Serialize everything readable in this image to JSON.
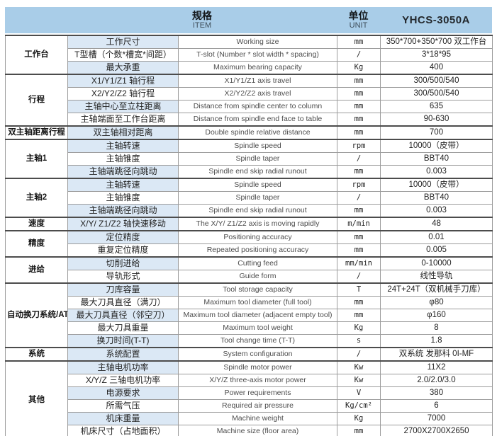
{
  "header": {
    "item_cn": "规格",
    "item_en": "ITEM",
    "unit_cn": "单位",
    "unit_en": "UNIT",
    "model": "YHCS-3050A"
  },
  "colors": {
    "header_bg": "#a9cde8",
    "row_tint": "#dbe8f5",
    "border_dark": "#4c4c4c",
    "border_light": "#9c9c9c"
  },
  "groups": [
    {
      "label": "工作台",
      "rows": [
        {
          "cn": "工作尺寸",
          "en": "Working size",
          "unit": "mm",
          "value": "350*700+350*700 双工作台"
        },
        {
          "cn": "T型槽（个数*槽宽*间距）",
          "en": "T-slot (Number * slot width * spacing)",
          "unit": "/",
          "value": "3*18*95"
        },
        {
          "cn": "最大承重",
          "en": "Maximum bearing capacity",
          "unit": "Kg",
          "value": "400"
        }
      ]
    },
    {
      "label": "行程",
      "rows": [
        {
          "cn": "X1/Y1/Z1 轴行程",
          "en": "X1/Y1/Z1 axis travel",
          "unit": "mm",
          "value": "300/500/540"
        },
        {
          "cn": "X2/Y2/Z2 轴行程",
          "en": "X2/Y2/Z2 axis travel",
          "unit": "mm",
          "value": "300/500/540"
        },
        {
          "cn": "主轴中心至立柱距离",
          "en": "Distance from spindle center to column",
          "unit": "mm",
          "value": "635"
        },
        {
          "cn": "主轴端面至工作台距离",
          "en": "Distance from spindle end face to table",
          "unit": "mm",
          "value": "90-630"
        }
      ]
    },
    {
      "label": "双主轴距离行程",
      "rows": [
        {
          "cn": "双主轴相对距离",
          "en": "Double spindle relative distance",
          "unit": "mm",
          "value": "700"
        }
      ]
    },
    {
      "label": "主轴1",
      "rows": [
        {
          "cn": "主轴转速",
          "en": "Spindle speed",
          "unit": "rpm",
          "value": "10000（皮带）"
        },
        {
          "cn": "主轴锥度",
          "en": "Spindle taper",
          "unit": "/",
          "value": "BBT40"
        },
        {
          "cn": "主轴端跳径向跳动",
          "en": "Spindle end skip radial runout",
          "unit": "mm",
          "value": "0.003"
        }
      ]
    },
    {
      "label": "主轴2",
      "rows": [
        {
          "cn": "主轴转速",
          "en": "Spindle speed",
          "unit": "rpm",
          "value": "10000（皮带）"
        },
        {
          "cn": "主轴锥度",
          "en": "Spindle taper",
          "unit": "/",
          "value": "BBT40"
        },
        {
          "cn": "主轴端跳径向跳动",
          "en": "Spindle end skip radial runout",
          "unit": "mm",
          "value": "0.003"
        }
      ]
    },
    {
      "label": "速度",
      "rows": [
        {
          "cn": "X/Y/ Z1/Z2 轴快速移动",
          "en": "The X/Y/ Z1/Z2 axis is moving rapidly",
          "unit": "m/min",
          "value": "48"
        }
      ]
    },
    {
      "label": "精度",
      "rows": [
        {
          "cn": "定位精度",
          "en": "Positioning accuracy",
          "unit": "mm",
          "value": "0.01"
        },
        {
          "cn": "重复定位精度",
          "en": "Repeated positioning accuracy",
          "unit": "mm",
          "value": "0.005"
        }
      ]
    },
    {
      "label": "进给",
      "rows": [
        {
          "cn": "切削进给",
          "en": "Cutting feed",
          "unit": "mm/min",
          "value": "0-10000"
        },
        {
          "cn": "导轨形式",
          "en": "Guide form",
          "unit": "/",
          "value": "线性导轨"
        }
      ]
    },
    {
      "label": "自动换刀系统/ATC",
      "rows": [
        {
          "cn": "刀库容量",
          "en": "Tool storage capacity",
          "unit": "T",
          "value": "24T+24T（双机械手刀库）"
        },
        {
          "cn": "最大刀具直径（满刀）",
          "en": "Maximum tool diameter (full tool)",
          "unit": "mm",
          "value": "φ80"
        },
        {
          "cn": "最大刀具直径（邻空刀）",
          "en": "Maximum tool diameter (adjacent empty tool)",
          "unit": "mm",
          "value": "φ160"
        },
        {
          "cn": "最大刀具重量",
          "en": "Maximum tool weight",
          "unit": "Kg",
          "value": "8"
        },
        {
          "cn": "换刀时间(T-T)",
          "en": "Tool change time (T-T)",
          "unit": "s",
          "value": "1.8"
        }
      ]
    },
    {
      "label": "系统",
      "rows": [
        {
          "cn": "系统配置",
          "en": "System configuration",
          "unit": "/",
          "value": "双系统 发那科 0I-MF"
        }
      ]
    },
    {
      "label": "其他",
      "rows": [
        {
          "cn": "主轴电机功率",
          "en": "Spindle motor power",
          "unit": "Kw",
          "value": "11X2"
        },
        {
          "cn": "X/Y/Z 三轴电机功率",
          "en": "X/Y/Z three-axis motor power",
          "unit": "Kw",
          "value": "2.0/2.0/3.0"
        },
        {
          "cn": "电源要求",
          "en": "Power requirements",
          "unit": "V",
          "value": "380"
        },
        {
          "cn": "所需气压",
          "en": "Required air pressure",
          "unit": "Kg/cm²",
          "value": "6"
        },
        {
          "cn": "机床重量",
          "en": "Machine weight",
          "unit": "Kg",
          "value": "7000"
        },
        {
          "cn": "机床尺寸（占地面积）",
          "en": "Machine size (floor area)",
          "unit": "mm",
          "value": "2700X2700X2650"
        }
      ]
    }
  ]
}
